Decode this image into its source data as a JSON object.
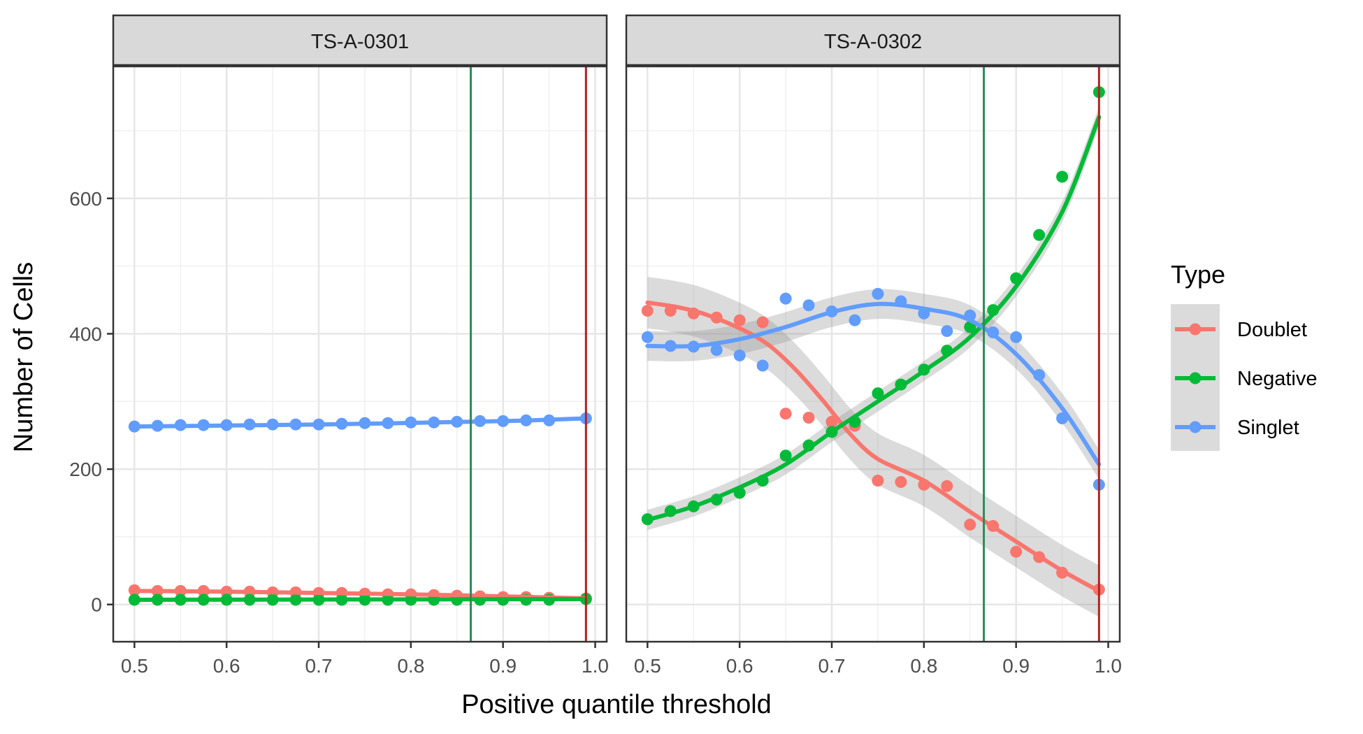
{
  "chart_data": {
    "type": "scatter",
    "xlabel": "Positive quantile threshold",
    "ylabel": "Number of Cells",
    "xlim": [
      0.477,
      1.0125
    ],
    "ylim": [
      -55,
      795
    ],
    "xticks": [
      0.5,
      0.6,
      0.7,
      0.8,
      0.9,
      1.0
    ],
    "xtick_labels": [
      "0.5",
      "0.6",
      "0.7",
      "0.8",
      "0.9",
      "1.0"
    ],
    "yticks": [
      0,
      200,
      400,
      600
    ],
    "ytick_labels": [
      "0",
      "200",
      "400",
      "600"
    ],
    "grid": true,
    "legend": {
      "title": "Type",
      "placement": "right",
      "entries": [
        "Doublet",
        "Negative",
        "Singlet"
      ]
    },
    "colors": {
      "Doublet": "#F8766D",
      "Negative": "#00BA38",
      "Singlet": "#619CFF",
      "vline_green": "#2E8B57",
      "vline_red": "#B22222",
      "band": "#999999"
    },
    "x": [
      0.5,
      0.525,
      0.55,
      0.575,
      0.6,
      0.625,
      0.65,
      0.675,
      0.7,
      0.725,
      0.75,
      0.775,
      0.8,
      0.825,
      0.85,
      0.875,
      0.9,
      0.925,
      0.95,
      0.99
    ],
    "panels": [
      {
        "strip": "TS-A-0301",
        "vlines": [
          0.865,
          0.99
        ],
        "series": [
          {
            "name": "Doublet",
            "values": [
              21,
              20,
              20,
              20,
              19,
              19,
              18,
              18,
              17,
              17,
              16,
              15,
              15,
              14,
              13,
              12,
              11,
              11,
              10,
              9
            ],
            "smooth": [
              [
                0.5,
                20
              ],
              [
                0.6,
                19
              ],
              [
                0.7,
                17
              ],
              [
                0.8,
                15
              ],
              [
                0.9,
                12
              ],
              [
                0.99,
                9
              ]
            ],
            "band": 0
          },
          {
            "name": "Negative",
            "values": [
              7,
              7,
              7,
              7,
              7,
              7,
              7,
              7,
              7,
              7,
              7,
              7,
              7,
              7,
              7,
              7,
              7,
              7,
              7,
              8
            ],
            "smooth": [
              [
                0.5,
                7
              ],
              [
                0.99,
                8
              ]
            ],
            "band": 0
          },
          {
            "name": "Singlet",
            "values": [
              263,
              264,
              265,
              265,
              265,
              266,
              266,
              266,
              266,
              267,
              268,
              268,
              269,
              269,
              270,
              271,
              271,
              272,
              272,
              275
            ],
            "smooth": [
              [
                0.5,
                263
              ],
              [
                0.7,
                266
              ],
              [
                0.9,
                271
              ],
              [
                0.99,
                275
              ]
            ],
            "band": 0
          }
        ]
      },
      {
        "strip": "TS-A-0302",
        "vlines": [
          0.865,
          0.99
        ],
        "series": [
          {
            "name": "Doublet",
            "values": [
              434,
              434,
              430,
              424,
              420,
              417,
              282,
              276,
              270,
              264,
              183,
              181,
              177,
              175,
              118,
              116,
              78,
              70,
              47,
              22
            ],
            "smooth": [
              [
                0.5,
                446
              ],
              [
                0.53,
                440
              ],
              [
                0.56,
                430
              ],
              [
                0.6,
                408
              ],
              [
                0.63,
                385
              ],
              [
                0.66,
                348
              ],
              [
                0.69,
                302
              ],
              [
                0.72,
                252
              ],
              [
                0.75,
                215
              ],
              [
                0.8,
                183
              ],
              [
                0.85,
                137
              ],
              [
                0.9,
                93
              ],
              [
                0.95,
                50
              ],
              [
                0.99,
                20
              ]
            ],
            "band": 38
          },
          {
            "name": "Negative",
            "values": [
              126,
              138,
              145,
              155,
              165,
              183,
              220,
              235,
              255,
              270,
              312,
              325,
              347,
              375,
              410,
              435,
              482,
              546,
              632,
              757
            ],
            "smooth": [
              [
                0.5,
                125
              ],
              [
                0.55,
                145
              ],
              [
                0.6,
                173
              ],
              [
                0.65,
                207
              ],
              [
                0.7,
                255
              ],
              [
                0.75,
                300
              ],
              [
                0.8,
                345
              ],
              [
                0.85,
                395
              ],
              [
                0.9,
                470
              ],
              [
                0.95,
                580
              ],
              [
                0.99,
                720
              ]
            ],
            "band": 15
          },
          {
            "name": "Singlet",
            "values": [
              395,
              382,
              381,
              376,
              368,
              353,
              452,
              442,
              433,
              420,
              459,
              448,
              430,
              404,
              427,
              402,
              395,
              339,
              275,
              177
            ],
            "smooth": [
              [
                0.5,
                382
              ],
              [
                0.55,
                382
              ],
              [
                0.6,
                392
              ],
              [
                0.65,
                410
              ],
              [
                0.7,
                432
              ],
              [
                0.75,
                444
              ],
              [
                0.8,
                437
              ],
              [
                0.85,
                420
              ],
              [
                0.9,
                370
              ],
              [
                0.95,
                290
              ],
              [
                0.99,
                207
              ]
            ],
            "band": 22
          }
        ]
      }
    ]
  }
}
